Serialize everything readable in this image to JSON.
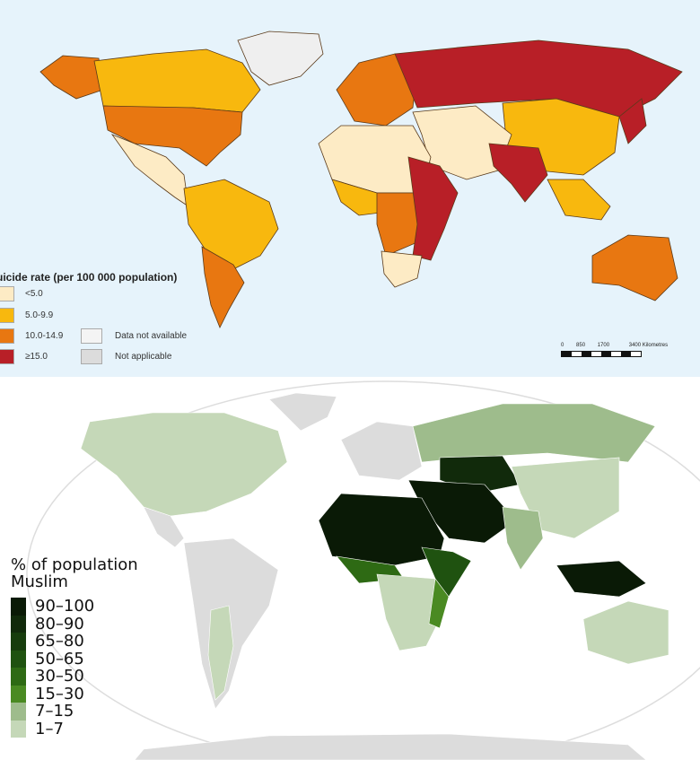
{
  "top_map": {
    "legend_title": "uicide rate (per 100 000 population)",
    "classes": [
      {
        "label": "<5.0",
        "color": "#fdebc5"
      },
      {
        "label": "5.0-9.9",
        "color": "#f8b80e"
      },
      {
        "label": "10.0-14.9",
        "color": "#e87711"
      },
      {
        "label": "≥15.0",
        "color": "#b81f27"
      }
    ],
    "other_classes": [
      {
        "label": "Data not available",
        "color": "#f4f4f4"
      },
      {
        "label": "Not applicable",
        "color": "#dcdcdc"
      }
    ],
    "scale_labels": [
      "0",
      "850",
      "1700",
      "3400 Kilometres"
    ]
  },
  "bottom_map": {
    "legend_title_line1": "% of population",
    "legend_title_line2": "Muslim",
    "classes": [
      {
        "label": "90–100",
        "color": "#0a1a06"
      },
      {
        "label": "80–90",
        "color": "#112a0b"
      },
      {
        "label": "65–80",
        "color": "#173d0d"
      },
      {
        "label": "50–65",
        "color": "#1f5210"
      },
      {
        "label": "30–50",
        "color": "#2e6a14"
      },
      {
        "label": "15–30",
        "color": "#4a8a22"
      },
      {
        "label": "7–15",
        "color": "#9ebc8c"
      },
      {
        "label": "1–7",
        "color": "#c5d8b8"
      }
    ]
  }
}
